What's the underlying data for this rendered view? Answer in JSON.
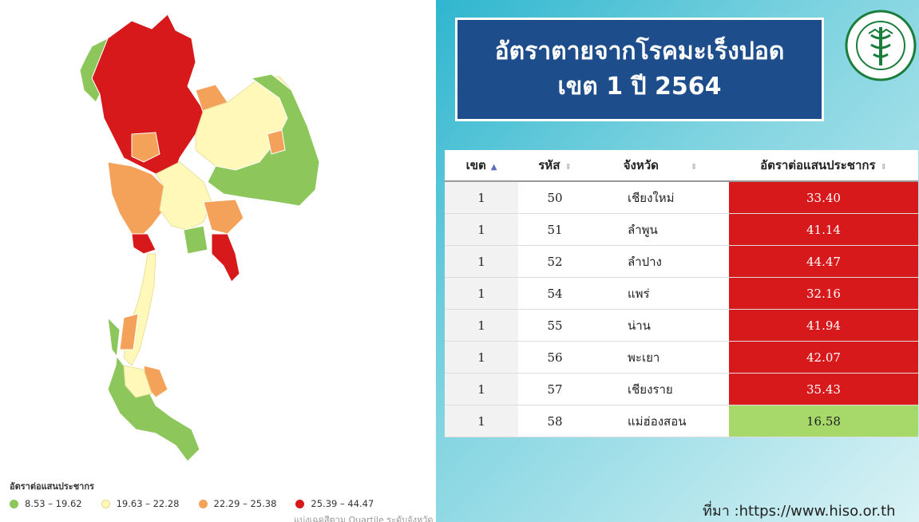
{
  "title": {
    "line1": "อัตราตายจากโรคมะเร็งปอด",
    "line2": "เขต 1 ปี 2564"
  },
  "table": {
    "headers": [
      "เขต",
      "รหัส",
      "จังหวัด",
      "อัตราต่อแสนประชากร"
    ],
    "rows": [
      {
        "zone": "1",
        "code": "50",
        "province": "เชียงใหม่",
        "rate": "33.40",
        "color": "#d7191c"
      },
      {
        "zone": "1",
        "code": "51",
        "province": "ลำพูน",
        "rate": "41.14",
        "color": "#d7191c"
      },
      {
        "zone": "1",
        "code": "52",
        "province": "ลำปาง",
        "rate": "44.47",
        "color": "#d7191c"
      },
      {
        "zone": "1",
        "code": "54",
        "province": "แพร่",
        "rate": "32.16",
        "color": "#d7191c"
      },
      {
        "zone": "1",
        "code": "55",
        "province": "น่าน",
        "rate": "41.94",
        "color": "#d7191c"
      },
      {
        "zone": "1",
        "code": "56",
        "province": "พะเยา",
        "rate": "42.07",
        "color": "#d7191c"
      },
      {
        "zone": "1",
        "code": "57",
        "province": "เชียงราย",
        "rate": "35.43",
        "color": "#d7191c"
      },
      {
        "zone": "1",
        "code": "58",
        "province": "แม่ฮ่องสอน",
        "rate": "16.58",
        "color": "#a6d96a"
      }
    ]
  },
  "legend": {
    "title": "อัตราต่อแสนประชากร",
    "items": [
      {
        "label": "8.53 – 19.62",
        "color": "#8dc75b"
      },
      {
        "label": "19.63 – 22.28",
        "color": "#fff8b8"
      },
      {
        "label": "22.29 – 25.38",
        "color": "#f4a259"
      },
      {
        "label": "25.39 – 44.47",
        "color": "#d7191c"
      }
    ],
    "note": "แบ่งเฉดสีตาม Quartile ระดับจังหวัด"
  },
  "source": "ที่มา :https://www.hiso.or.th",
  "logo": {
    "text": "สำนักงานสาธารณสุขจังหวัดเชียงใหม่ CHIANGMAI PROVINCIAL PUBLIC HEALTH OFFICE"
  }
}
